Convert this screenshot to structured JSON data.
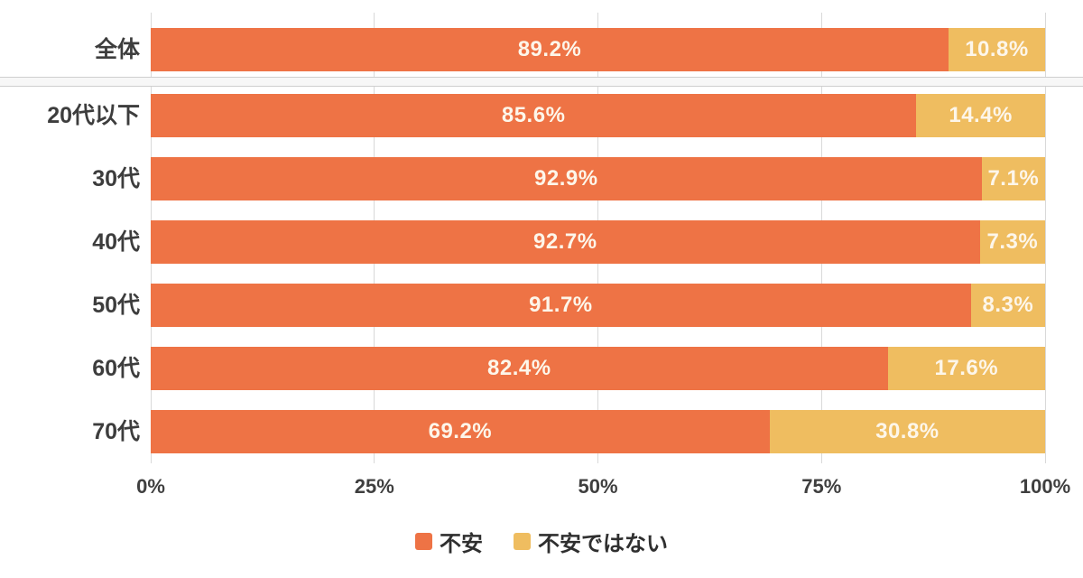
{
  "chart_data": {
    "type": "bar",
    "orientation": "horizontal",
    "stacked": true,
    "title": "",
    "xlabel": "",
    "ylabel": "",
    "xlim": [
      0,
      100
    ],
    "grid": true,
    "legend_position": "bottom",
    "value_suffix": "%",
    "categories": [
      "全体",
      "20代以下",
      "30代",
      "40代",
      "50代",
      "60代",
      "70代"
    ],
    "series": [
      {
        "name": "不安",
        "color": "#ee7345",
        "values": [
          89.2,
          85.6,
          92.9,
          92.7,
          91.7,
          82.4,
          69.2
        ]
      },
      {
        "name": "不安ではない",
        "color": "#efbd60",
        "values": [
          10.8,
          14.4,
          7.1,
          7.3,
          8.3,
          17.6,
          30.8
        ]
      }
    ],
    "x_ticks": [
      {
        "value": 0,
        "label": "0%"
      },
      {
        "value": 25,
        "label": "25%"
      },
      {
        "value": 50,
        "label": "50%"
      },
      {
        "value": 75,
        "label": "75%"
      },
      {
        "value": 100,
        "label": "100%"
      }
    ],
    "separator_after_category": "全体"
  },
  "colors": {
    "background": "#ffffff",
    "grid": "#d9d9d9",
    "divider": "#cfcfcf",
    "category_text": "#3d3d3d",
    "axis_text": "#3f3f3f",
    "value_text": "#fdf6ea",
    "legend_text": "#2f2f2f"
  }
}
